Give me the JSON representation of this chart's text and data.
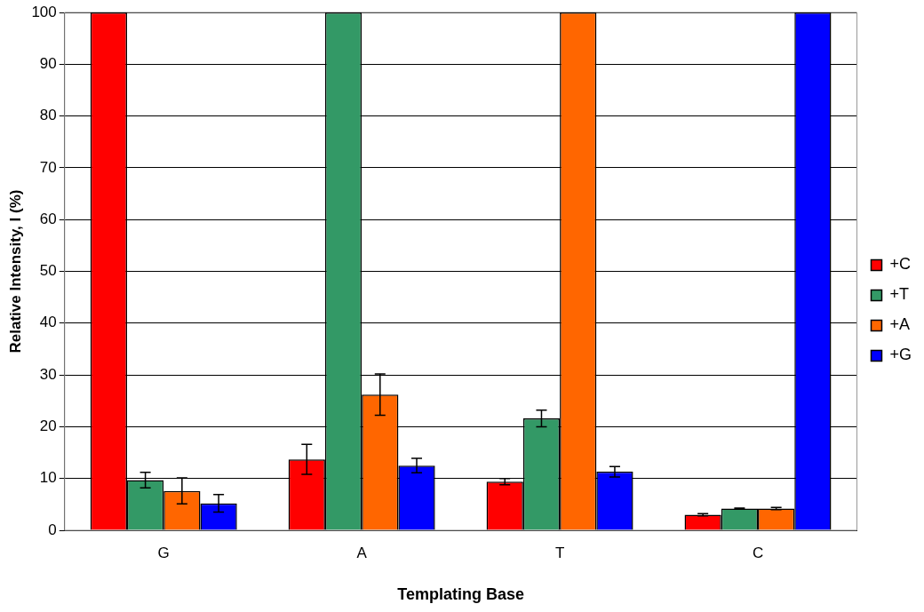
{
  "chart_data": {
    "type": "bar",
    "xlabel": "Templating Base",
    "ylabel": "Relative Intensity, I (%)",
    "categories": [
      "G",
      "A",
      "T",
      "C"
    ],
    "series": [
      {
        "name": "+C",
        "color": "#ff0000",
        "values": [
          100,
          13.7,
          9.4,
          3.0
        ],
        "errors": [
          null,
          2.9,
          0.6,
          0.2
        ]
      },
      {
        "name": "+T",
        "color": "#339966",
        "values": [
          9.7,
          100,
          21.6,
          4.2
        ],
        "errors": [
          1.5,
          null,
          1.6,
          0.1
        ]
      },
      {
        "name": "+A",
        "color": "#ff6600",
        "values": [
          7.6,
          26.2,
          100,
          4.2
        ],
        "errors": [
          2.5,
          4.0,
          null,
          0.2
        ]
      },
      {
        "name": "+G",
        "color": "#0000ff",
        "values": [
          5.2,
          12.5,
          11.3,
          100
        ],
        "errors": [
          1.7,
          1.4,
          1.0,
          null
        ]
      }
    ],
    "ylim": [
      0,
      100
    ],
    "yticks": [
      0,
      10,
      20,
      30,
      40,
      50,
      60,
      70,
      80,
      90,
      100
    ],
    "grid": "y",
    "legend": "right"
  }
}
